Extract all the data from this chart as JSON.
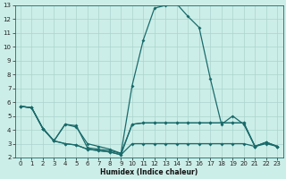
{
  "xlabel": "Humidex (Indice chaleur)",
  "xlim": [
    -0.5,
    23.5
  ],
  "ylim": [
    2,
    13
  ],
  "yticks": [
    2,
    3,
    4,
    5,
    6,
    7,
    8,
    9,
    10,
    11,
    12,
    13
  ],
  "xticks": [
    0,
    1,
    2,
    3,
    4,
    5,
    6,
    7,
    8,
    9,
    10,
    11,
    12,
    13,
    14,
    15,
    16,
    17,
    18,
    19,
    20,
    21,
    22,
    23
  ],
  "bg_color": "#cceee8",
  "line_color": "#1a6b6b",
  "grid_color": "#aad4ce",
  "lines": [
    {
      "x": [
        0,
        1,
        2,
        3,
        4,
        5,
        6,
        7,
        8,
        9,
        10,
        11,
        12,
        13,
        14,
        15,
        16,
        17,
        18,
        19,
        20,
        21,
        22,
        23
      ],
      "y": [
        5.7,
        5.6,
        4.1,
        3.2,
        4.4,
        4.3,
        2.7,
        2.6,
        2.5,
        2.3,
        7.2,
        10.5,
        12.8,
        13.0,
        13.1,
        12.2,
        11.4,
        7.7,
        4.4,
        5.0,
        4.4,
        2.8,
        3.1,
        2.8
      ]
    },
    {
      "x": [
        0,
        1,
        2,
        3,
        4,
        5,
        6,
        7,
        8,
        9,
        10,
        11,
        12,
        13,
        14,
        15,
        16,
        17,
        18,
        19,
        20,
        21,
        22,
        23
      ],
      "y": [
        5.7,
        5.6,
        4.1,
        3.2,
        3.0,
        2.9,
        2.6,
        2.5,
        2.4,
        2.2,
        3.0,
        3.0,
        3.0,
        3.0,
        3.0,
        3.0,
        3.0,
        3.0,
        3.0,
        3.0,
        3.0,
        2.8,
        3.0,
        2.8
      ]
    },
    {
      "x": [
        0,
        1,
        2,
        3,
        4,
        5,
        6,
        7,
        8,
        9,
        10,
        11,
        12,
        13,
        14,
        15,
        16,
        17,
        18,
        19,
        20,
        21,
        22,
        23
      ],
      "y": [
        5.7,
        5.6,
        4.1,
        3.2,
        4.4,
        4.2,
        3.0,
        2.8,
        2.6,
        2.3,
        4.4,
        4.5,
        4.5,
        4.5,
        4.5,
        4.5,
        4.5,
        4.5,
        4.5,
        4.5,
        4.5,
        2.8,
        3.1,
        2.8
      ]
    },
    {
      "x": [
        0,
        1,
        2,
        3,
        4,
        5,
        6,
        7,
        8,
        9,
        10,
        11,
        12,
        13,
        14,
        15,
        16,
        17,
        18,
        19,
        20,
        21,
        22,
        23
      ],
      "y": [
        5.7,
        5.6,
        4.1,
        3.2,
        3.0,
        2.9,
        2.6,
        2.5,
        2.4,
        2.2,
        4.4,
        4.5,
        4.5,
        4.5,
        4.5,
        4.5,
        4.5,
        4.5,
        4.5,
        4.5,
        4.5,
        2.8,
        3.1,
        2.8
      ]
    }
  ],
  "tick_labelsize": 5,
  "xlabel_fontsize": 5.5,
  "xlabel_fontweight": "bold",
  "linewidth": 0.9,
  "markersize": 2.0
}
